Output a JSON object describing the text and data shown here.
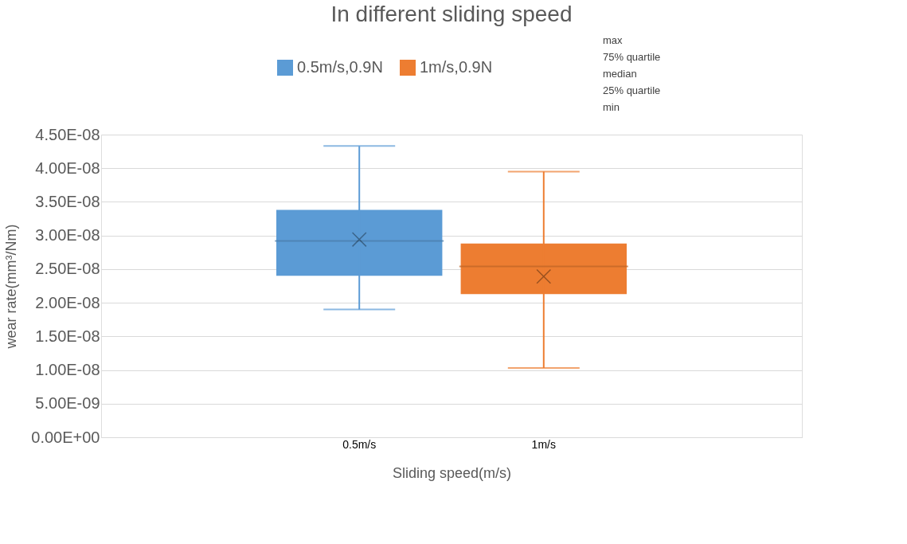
{
  "chart_data": {
    "type": "box",
    "title": "In different sliding speed",
    "xlabel": "Sliding speed(m/s)",
    "ylabel": "wear rate(mm³/Nm)",
    "categories": [
      "0.5m/s",
      "1m/s"
    ],
    "series": [
      {
        "name": "0.5m/s,0.9N",
        "color": "#5b9bd5",
        "boxes": [
          {
            "low": 1.9e-08,
            "q1": 2.4e-08,
            "median": 2.92e-08,
            "q3": 3.38e-08,
            "high": 4.33e-08,
            "mean": 2.94e-08
          },
          null
        ]
      },
      {
        "name": "1m/s,0.9N",
        "color": "#ed7d31",
        "boxes": [
          null,
          {
            "low": 1.03e-08,
            "q1": 2.13e-08,
            "median": 2.54e-08,
            "q3": 2.88e-08,
            "high": 3.95e-08,
            "mean": 2.39e-08
          }
        ]
      }
    ],
    "ylim": [
      0,
      4.5e-08
    ],
    "yticks": [
      {
        "value": 0,
        "label": "0.00E+00"
      },
      {
        "value": 5e-09,
        "label": "5.00E-09"
      },
      {
        "value": 1e-08,
        "label": "1.00E-08"
      },
      {
        "value": 1.5e-08,
        "label": "1.50E-08"
      },
      {
        "value": 2e-08,
        "label": "2.00E-08"
      },
      {
        "value": 2.5e-08,
        "label": "2.50E-08"
      },
      {
        "value": 3e-08,
        "label": "3.00E-08"
      },
      {
        "value": 3.5e-08,
        "label": "3.50E-08"
      },
      {
        "value": 4e-08,
        "label": "4.00E-08"
      },
      {
        "value": 4.5e-08,
        "label": "4.50E-08"
      }
    ],
    "grid": "y",
    "legend": "top",
    "marker": "cross",
    "annotations": [
      "max",
      "75% quartile",
      "median",
      "25% quartile",
      "min"
    ]
  }
}
